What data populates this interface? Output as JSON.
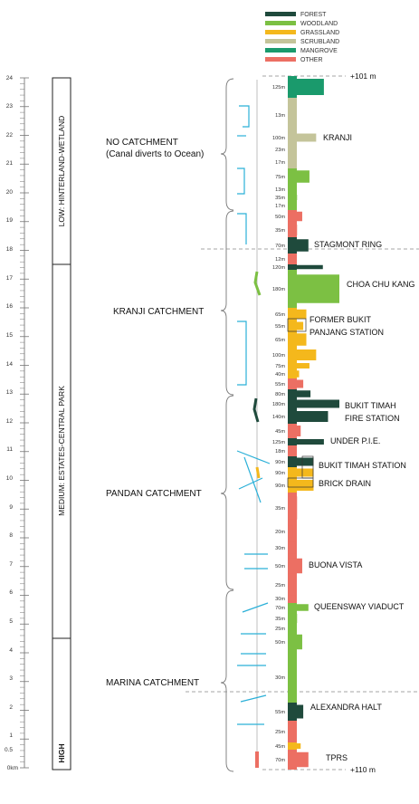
{
  "legend": [
    {
      "label": "FOREST",
      "color": "#1f4a3c"
    },
    {
      "label": "WOODLAND",
      "color": "#7cc043"
    },
    {
      "label": "GRASSLAND",
      "color": "#f4b81c"
    },
    {
      "label": "SCRUBLAND",
      "color": "#c4c49a"
    },
    {
      "label": "MANGROVE",
      "color": "#1a9a6c"
    },
    {
      "label": "OTHER",
      "color": "#ec6f63"
    }
  ],
  "scale": {
    "unit": "0km",
    "ticks": [
      "24",
      "23",
      "22",
      "21",
      "20",
      "19",
      "18",
      "17",
      "16",
      "15",
      "14",
      "13",
      "12",
      "11",
      "10",
      "9",
      "8",
      "7",
      "6",
      "5",
      "4",
      "3",
      "2",
      "1",
      "0.5",
      "0km"
    ]
  },
  "zones": [
    {
      "label": "LOW: HINTERLAND-WETLAND",
      "bold": "LOW"
    },
    {
      "label": "MEDIUM: ESTATES-CENTRAL PARK",
      "bold": "MEDIUM"
    },
    {
      "label": "HIGH",
      "bold": "HIGH"
    }
  ],
  "catchments": [
    {
      "line1": "NO CATCHMENT",
      "line2": "(Canal diverts to Ocean)"
    },
    {
      "line1": "KRANJI CATCHMENT",
      "line2": ""
    },
    {
      "line1": "PANDAN CATCHMENT",
      "line2": ""
    },
    {
      "line1": "MARINA CATCHMENT",
      "line2": ""
    }
  ],
  "elevations": {
    "top": "+101 m",
    "bottom": "+110 m"
  },
  "places": [
    {
      "label": "KRANJI"
    },
    {
      "label": "STAGMONT RING"
    },
    {
      "label": "CHOA CHU KANG"
    },
    {
      "label": "FORMER BUKIT PANJANG STATION",
      "line1": "FORMER BUKIT",
      "line2": "PANJANG STATION"
    },
    {
      "label": "BUKIT TIMAH FIRE STATION",
      "line1": "BUKIT TIMAH",
      "line2": "FIRE STATION"
    },
    {
      "label": "UNDER P.I.E."
    },
    {
      "label": "BUKIT TIMAH STATION"
    },
    {
      "label": "BRICK DRAIN"
    },
    {
      "label": "BUONA VISTA"
    },
    {
      "label": "QUEENSWAY VIADUCT"
    },
    {
      "label": "ALEXANDRA HALT"
    },
    {
      "label": "TPRS"
    }
  ],
  "segments": [
    {
      "width_label": "125m",
      "land": "mangrove",
      "bar_extent": 0.7
    },
    {
      "width_label": "13m",
      "land": "scrubland",
      "bar_extent": 0.05
    },
    {
      "width_label": "100m",
      "land": "scrubland",
      "bar_extent": 0.55
    },
    {
      "width_label": "23m",
      "land": "scrubland",
      "bar_extent": 0.1
    },
    {
      "width_label": "17m",
      "land": "scrubland",
      "bar_extent": 0.07
    },
    {
      "width_label": "75m",
      "land": "woodland",
      "bar_extent": 0.42
    },
    {
      "width_label": "13m",
      "land": "woodland",
      "bar_extent": 0.05
    },
    {
      "width_label": "35m",
      "land": "woodland",
      "bar_extent": 0.18
    },
    {
      "width_label": "17m",
      "land": "woodland",
      "bar_extent": 0.07
    },
    {
      "width_label": "50m",
      "land": "other",
      "bar_extent": 0.28
    },
    {
      "width_label": "35m",
      "land": "other",
      "bar_extent": 0.18
    },
    {
      "width_label": "70m",
      "land": "forest",
      "bar_extent": 0.4
    },
    {
      "width_label": "12m",
      "land": "other",
      "bar_extent": 0.05
    },
    {
      "width_label": "120m",
      "land": "forest",
      "bar_extent": 0.68
    },
    {
      "width_label": "180m",
      "land": "woodland",
      "bar_extent": 1.0
    },
    {
      "width_label": "65m",
      "land": "grassland",
      "bar_extent": 0.36
    },
    {
      "width_label": "55m",
      "land": "grassland",
      "bar_extent": 0.3
    },
    {
      "width_label": "65m",
      "land": "grassland",
      "bar_extent": 0.36
    },
    {
      "width_label": "100m",
      "land": "grassland",
      "bar_extent": 0.55
    },
    {
      "width_label": "75m",
      "land": "grassland",
      "bar_extent": 0.42
    },
    {
      "width_label": "40m",
      "land": "grassland",
      "bar_extent": 0.22
    },
    {
      "width_label": "55m",
      "land": "other",
      "bar_extent": 0.3
    },
    {
      "width_label": "80m",
      "land": "forest",
      "bar_extent": 0.44
    },
    {
      "width_label": "180m",
      "land": "forest",
      "bar_extent": 1.0
    },
    {
      "width_label": "140m",
      "land": "forest",
      "bar_extent": 0.78
    },
    {
      "width_label": "45m",
      "land": "other",
      "bar_extent": 0.25
    },
    {
      "width_label": "125m",
      "land": "forest",
      "bar_extent": 0.7
    },
    {
      "width_label": "18m",
      "land": "other",
      "bar_extent": 0.08
    },
    {
      "width_label": "90m",
      "land": "forest",
      "bar_extent": 0.5
    },
    {
      "width_label": "90m",
      "land": "grassland",
      "bar_extent": 0.5
    },
    {
      "width_label": "90m",
      "land": "grassland",
      "bar_extent": 0.5
    },
    {
      "width_label": "35m",
      "land": "other",
      "bar_extent": 0.18
    },
    {
      "width_label": "20m",
      "land": "other",
      "bar_extent": 0.1
    },
    {
      "width_label": "30m",
      "land": "other",
      "bar_extent": 0.15
    },
    {
      "width_label": "50m",
      "land": "other",
      "bar_extent": 0.28
    },
    {
      "width_label": "25m",
      "land": "other",
      "bar_extent": 0.12
    },
    {
      "width_label": "30m",
      "land": "other",
      "bar_extent": 0.15
    },
    {
      "width_label": "70m",
      "land": "woodland",
      "bar_extent": 0.4
    },
    {
      "width_label": "35m",
      "land": "woodland",
      "bar_extent": 0.18
    },
    {
      "width_label": "25m",
      "land": "woodland",
      "bar_extent": 0.12
    },
    {
      "width_label": "50m",
      "land": "woodland",
      "bar_extent": 0.28
    },
    {
      "width_label": "30m",
      "land": "woodland",
      "bar_extent": 0.15
    },
    {
      "width_label": "55m",
      "land": "forest",
      "bar_extent": 0.3
    },
    {
      "width_label": "25m",
      "land": "other",
      "bar_extent": 0.12
    },
    {
      "width_label": "45m",
      "land": "grassland",
      "bar_extent": 0.25
    },
    {
      "width_label": "70m",
      "land": "other",
      "bar_extent": 0.4
    }
  ]
}
